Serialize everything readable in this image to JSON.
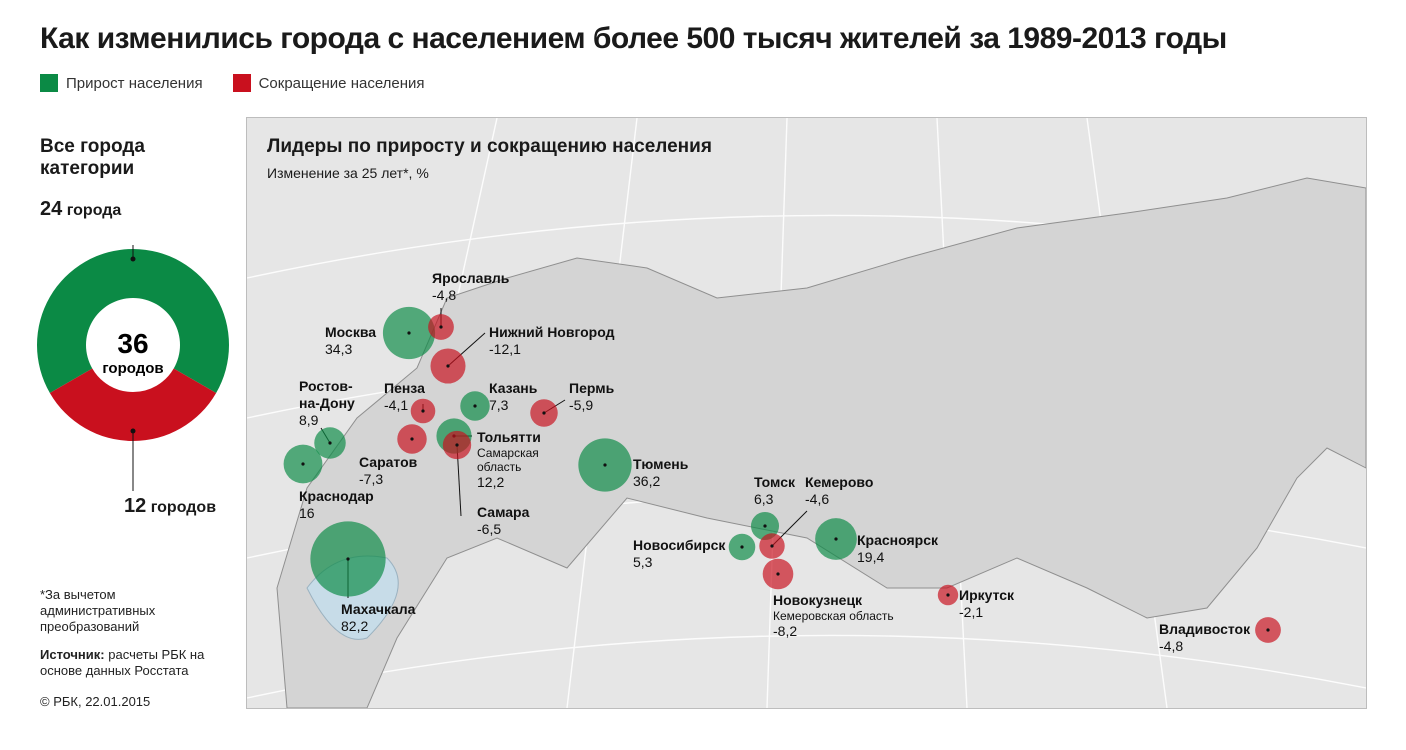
{
  "title": "Как изменились города с населением более 500 тысяч жителей за 1989-2013 годы",
  "legend": {
    "growth": {
      "label": "Прирост населения",
      "color": "#0b8a45"
    },
    "decline": {
      "label": "Сокращение населения",
      "color": "#c9101e"
    }
  },
  "sidebar": {
    "title": "Все города категории",
    "growth_count_num": "24",
    "growth_count_unit": "города",
    "total_num": "36",
    "total_unit": "городов",
    "decline_count_num": "12",
    "decline_count_unit": "городов",
    "footnote": "*За вычетом административных преобразований",
    "source_label": "Источник:",
    "source_text": "расчеты РБК на основе данных Росстата",
    "copyright": "© РБК, 22.01.2015"
  },
  "map": {
    "title": "Лидеры по приросту и сокращению населения",
    "subtitle": "Изменение за 25 лет*, %"
  },
  "chart_data": [
    {
      "type": "pie",
      "title": "Все города категории",
      "categories": [
        "Прирост населения",
        "Сокращение населения"
      ],
      "values": [
        24,
        12
      ],
      "total": 36,
      "colors": [
        "#0b8a45",
        "#c9101e"
      ]
    },
    {
      "type": "scatter",
      "title": "Лидеры по приросту и сокращению населения",
      "subtitle": "Изменение за 25 лет*, %",
      "points": [
        {
          "name": "Москва",
          "value": "34,3",
          "v": 34.3
        },
        {
          "name": "Ярославль",
          "value": "-4,8",
          "v": -4.8
        },
        {
          "name": "Нижний Новгород",
          "value": "-12,1",
          "v": -12.1
        },
        {
          "name": "Пенза",
          "value": "-4,1",
          "v": -4.1
        },
        {
          "name": "Казань",
          "value": "7,3",
          "v": 7.3
        },
        {
          "name": "Пермь",
          "value": "-5,9",
          "v": -5.9
        },
        {
          "name": "Ростов-на-Дону",
          "value": "8,9",
          "v": 8.9
        },
        {
          "name": "Саратов",
          "value": "-7,3",
          "v": -7.3
        },
        {
          "name": "Тольятти",
          "note": "Самарская область",
          "value": "12,2",
          "v": 12.2
        },
        {
          "name": "Самара",
          "value": "-6,5",
          "v": -6.5
        },
        {
          "name": "Краснодар",
          "value": "16",
          "v": 16
        },
        {
          "name": "Махачкала",
          "value": "82,2",
          "v": 82.2
        },
        {
          "name": "Тюмень",
          "value": "36,2",
          "v": 36.2
        },
        {
          "name": "Томск",
          "value": "6,3",
          "v": 6.3
        },
        {
          "name": "Кемерово",
          "value": "-4,6",
          "v": -4.6
        },
        {
          "name": "Новосибирск",
          "value": "5,3",
          "v": 5.3
        },
        {
          "name": "Красноярск",
          "value": "19,4",
          "v": 19.4
        },
        {
          "name": "Новокузнецк",
          "note": "Кемеровская область",
          "value": "-8,2",
          "v": -8.2
        },
        {
          "name": "Иркутск",
          "value": "-2,1",
          "v": -2.1
        },
        {
          "name": "Владивосток",
          "value": "-4,8",
          "v": -4.8
        }
      ]
    }
  ]
}
